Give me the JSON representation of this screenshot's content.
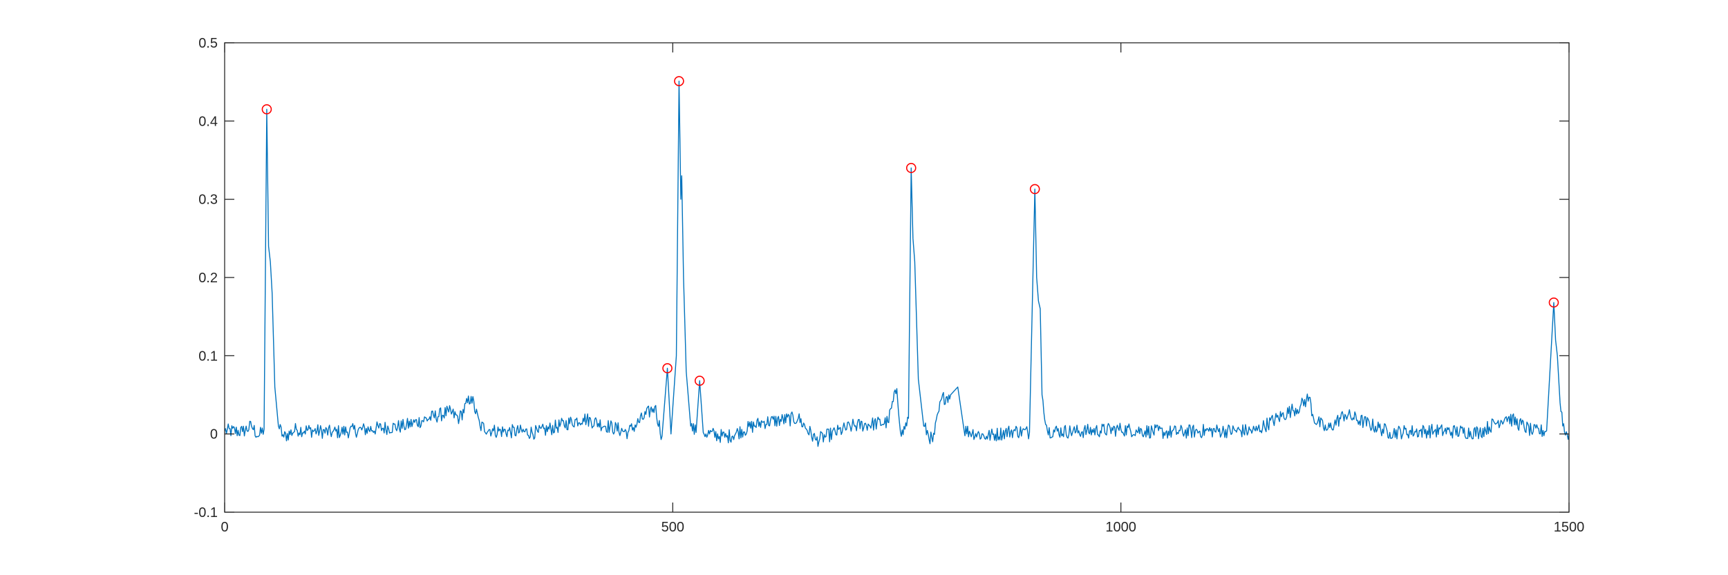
{
  "colors": {
    "line": "#0072BD",
    "marker": "#FF0000",
    "axis": "#262626",
    "background": "#ffffff"
  },
  "chart_data": {
    "type": "line",
    "title": "",
    "xlabel": "",
    "ylabel": "",
    "xlim": [
      0,
      1500
    ],
    "ylim": [
      -0.1,
      0.5
    ],
    "xticks": [
      0,
      500,
      1000,
      1500
    ],
    "xtick_labels": [
      "0",
      "500",
      "1000",
      "1500"
    ],
    "yticks": [
      -0.1,
      0,
      0.1,
      0.2,
      0.3,
      0.4,
      0.5
    ],
    "ytick_labels": [
      "-0.1",
      "0",
      "0.1",
      "0.2",
      "0.3",
      "0.4",
      "0.5"
    ],
    "grid": false,
    "legend": "none",
    "series": [
      {
        "values_description": "noisy signal near zero with sharp peaks",
        "points": [
          [
            0,
            0.004
          ],
          [
            20,
            0.003
          ],
          [
            30,
            0.01
          ],
          [
            38,
            -0.003
          ],
          [
            44,
            0.006
          ],
          [
            47,
            0.415
          ],
          [
            49,
            0.24
          ],
          [
            51,
            0.22
          ],
          [
            53,
            0.18
          ],
          [
            56,
            0.06
          ],
          [
            60,
            0.01
          ],
          [
            66,
            -0.004
          ],
          [
            80,
            0.006
          ],
          [
            120,
            0.002
          ],
          [
            200,
            0.01
          ],
          [
            250,
            0.028
          ],
          [
            262,
            0.02
          ],
          [
            275,
            0.048
          ],
          [
            285,
            0.01
          ],
          [
            300,
            0.004
          ],
          [
            350,
            0.002
          ],
          [
            400,
            0.02
          ],
          [
            450,
            0.002
          ],
          [
            480,
            0.035
          ],
          [
            488,
            -0.003
          ],
          [
            494,
            0.084
          ],
          [
            498,
            0.0
          ],
          [
            504,
            0.1
          ],
          [
            507,
            0.451
          ],
          [
            509,
            0.3
          ],
          [
            510,
            0.33
          ],
          [
            512,
            0.2
          ],
          [
            515,
            0.08
          ],
          [
            520,
            0.01
          ],
          [
            526,
            0.002
          ],
          [
            530,
            0.068
          ],
          [
            534,
            0.002
          ],
          [
            560,
            -0.004
          ],
          [
            600,
            0.015
          ],
          [
            640,
            0.02
          ],
          [
            660,
            -0.008
          ],
          [
            700,
            0.01
          ],
          [
            740,
            0.015
          ],
          [
            750,
            0.058
          ],
          [
            755,
            -0.003
          ],
          [
            763,
            0.02
          ],
          [
            766,
            0.34
          ],
          [
            768,
            0.25
          ],
          [
            770,
            0.22
          ],
          [
            774,
            0.07
          ],
          [
            780,
            0.01
          ],
          [
            790,
            -0.01
          ],
          [
            800,
            0.045
          ],
          [
            810,
            0.05
          ],
          [
            818,
            0.06
          ],
          [
            825,
            0.005
          ],
          [
            850,
            -0.003
          ],
          [
            880,
            0.004
          ],
          [
            898,
            0.002
          ],
          [
            904,
            0.313
          ],
          [
            906,
            0.2
          ],
          [
            908,
            0.17
          ],
          [
            910,
            0.16
          ],
          [
            912,
            0.05
          ],
          [
            918,
            0.004
          ],
          [
            950,
            0.003
          ],
          [
            1000,
            0.006
          ],
          [
            1050,
            0.002
          ],
          [
            1100,
            0.004
          ],
          [
            1150,
            0.004
          ],
          [
            1190,
            0.03
          ],
          [
            1200,
            0.035
          ],
          [
            1210,
            0.047
          ],
          [
            1215,
            0.02
          ],
          [
            1230,
            0.005
          ],
          [
            1250,
            0.025
          ],
          [
            1300,
            0.002
          ],
          [
            1350,
            0.004
          ],
          [
            1400,
            0.002
          ],
          [
            1430,
            0.022
          ],
          [
            1460,
            0.003
          ],
          [
            1475,
            0.004
          ],
          [
            1483,
            0.168
          ],
          [
            1485,
            0.12
          ],
          [
            1487,
            0.1
          ],
          [
            1490,
            0.04
          ],
          [
            1495,
            0.002
          ],
          [
            1500,
            0.0
          ]
        ]
      }
    ],
    "peaks": [
      [
        47,
        0.415
      ],
      [
        494,
        0.084
      ],
      [
        507,
        0.451
      ],
      [
        530,
        0.068
      ],
      [
        766,
        0.34
      ],
      [
        904,
        0.313
      ],
      [
        1483,
        0.168
      ]
    ]
  }
}
